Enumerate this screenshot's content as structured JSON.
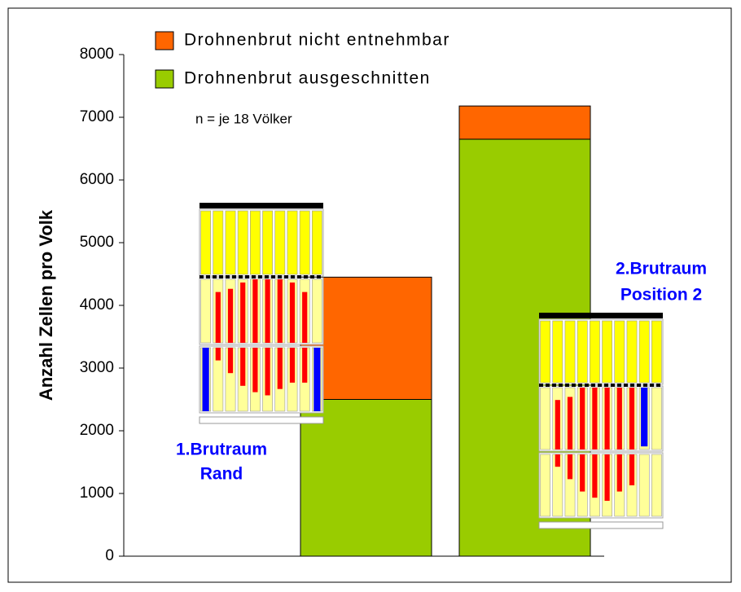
{
  "chart_data": {
    "type": "bar",
    "stacked": true,
    "ylabel": "Anzahl Zellen pro Volk",
    "categories": [
      null,
      null,
      null
    ],
    "series": [
      {
        "name": "Drohnenbrut ausgeschnitten",
        "color": "#99cc00",
        "values": [
          null,
          2500,
          6650
        ]
      },
      {
        "name": "Drohnenbrut nicht entnehmbar",
        "color": "#ff6600",
        "values": [
          null,
          1950,
          530
        ]
      }
    ],
    "ylim": [
      0,
      8000
    ],
    "yticks": [
      0,
      1000,
      2000,
      3000,
      4000,
      5000,
      6000,
      7000,
      8000
    ],
    "annotations": [
      "n = je 18 Völker",
      "1.Brutraum",
      "Rand",
      "2.Brutraum",
      "Position 2"
    ]
  }
}
